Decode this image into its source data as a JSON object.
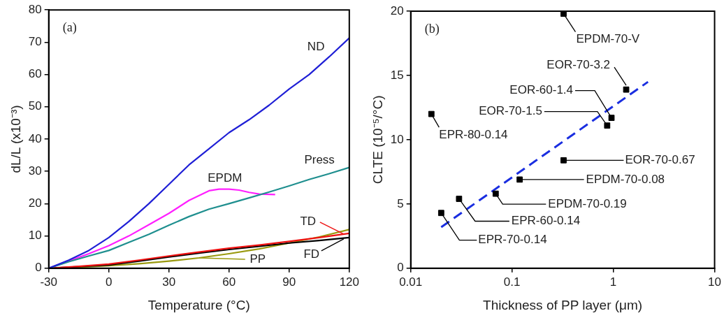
{
  "chart_data": [
    {
      "type": "line",
      "xlabel": "Temperature (°C)",
      "ylabel": "dL/L (x10⁻³)",
      "xlim": [
        -30,
        120
      ],
      "xticks": [
        -30,
        0,
        30,
        60,
        90,
        120
      ],
      "ylim": [
        0,
        80
      ],
      "yticks": [
        0,
        10,
        20,
        30,
        40,
        50,
        60,
        70,
        80
      ],
      "grid": false,
      "annotations": [
        "(a)"
      ],
      "series": [
        {
          "name": "ND",
          "color": "#1f1fd6",
          "x": [
            -30,
            -20,
            -10,
            0,
            10,
            20,
            30,
            40,
            50,
            60,
            70,
            80,
            90,
            100,
            110,
            120
          ],
          "values": [
            0,
            2.5,
            5.5,
            9.5,
            14.5,
            20,
            26,
            32,
            37,
            42,
            46,
            50.5,
            55.5,
            60,
            65.5,
            71.3
          ]
        },
        {
          "name": "Press",
          "color": "#1f8f8f",
          "x": [
            -30,
            -20,
            -10,
            0,
            10,
            20,
            30,
            40,
            50,
            60,
            70,
            80,
            90,
            100,
            110,
            120
          ],
          "values": [
            0,
            2,
            3.8,
            5.5,
            8,
            10.5,
            13.3,
            16,
            18.3,
            20,
            21.8,
            23.6,
            25.5,
            27.5,
            29.3,
            31.2
          ]
        },
        {
          "name": "EPDM",
          "color": "#ff1fff",
          "x": [
            -30,
            -20,
            -10,
            0,
            10,
            20,
            30,
            40,
            50,
            55,
            60,
            65,
            70,
            75,
            83
          ],
          "values": [
            0,
            2.2,
            4.5,
            7,
            10,
            13.5,
            17,
            21,
            24,
            24.5,
            24.5,
            24.2,
            23.5,
            23,
            22.8
          ]
        },
        {
          "name": "TD",
          "color": "#ee1111",
          "x": [
            -30,
            -15,
            0,
            15,
            30,
            45,
            60,
            75,
            90,
            105,
            120
          ],
          "values": [
            0,
            0.6,
            1.3,
            2.5,
            3.8,
            5,
            6.2,
            7.2,
            8.3,
            9.5,
            10.8
          ]
        },
        {
          "name": "FD",
          "color": "#000000",
          "x": [
            -30,
            -15,
            0,
            15,
            30,
            45,
            60,
            75,
            90,
            105,
            120
          ],
          "values": [
            0,
            0.5,
            1,
            2.2,
            3.5,
            4.7,
            5.8,
            6.8,
            7.8,
            8.6,
            9.5
          ]
        },
        {
          "name": "PP",
          "color": "#9a9a10",
          "x": [
            -30,
            -15,
            0,
            15,
            30,
            45,
            60,
            75,
            90,
            105,
            120
          ],
          "values": [
            0,
            0.3,
            0.8,
            1.4,
            2.2,
            3.2,
            4.5,
            6,
            7.8,
            9.7,
            12
          ]
        }
      ]
    },
    {
      "type": "scatter",
      "xlabel": "Thickness of PP layer (μm)",
      "ylabel": "CLTE (10⁻⁵/°C)",
      "log": "x",
      "marker": "square",
      "xlim": [
        0.01,
        10
      ],
      "xticks": [
        0.01,
        0.1,
        1,
        10
      ],
      "ylim": [
        0,
        20
      ],
      "yticks": [
        0,
        5,
        10,
        15,
        20
      ],
      "grid": false,
      "annotations": [
        "(b)",
        {
          "text": "EPDM-70-V",
          "x": 0.323,
          "y": 19.8
        },
        {
          "text": "EOR-70-3.2",
          "x": 1.34,
          "y": 13.9
        },
        {
          "text": "EOR-60-1.4",
          "x": 0.96,
          "y": 11.7
        },
        {
          "text": "EOR-70-1.5",
          "x": 0.87,
          "y": 11.1
        },
        {
          "text": "EPR-80-0.14",
          "x": 0.016,
          "y": 12
        },
        {
          "text": "EOR-70-0.67",
          "x": 0.323,
          "y": 8.4
        },
        {
          "text": "EPDM-70-0.08",
          "x": 0.119,
          "y": 6.9
        },
        {
          "text": "EPDM-70-0.19",
          "x": 0.069,
          "y": 5.8
        },
        {
          "text": "EPR-60-0.14",
          "x": 0.03,
          "y": 5.4
        },
        {
          "text": "EPR-70-0.14",
          "x": 0.02,
          "y": 4.3
        }
      ],
      "series": [
        {
          "color": "#000000",
          "x": [
            0.323,
            1.34,
            0.96,
            0.87,
            0.016,
            0.323,
            0.119,
            0.069,
            0.03,
            0.02
          ],
          "values": [
            19.8,
            13.9,
            11.7,
            11.1,
            12,
            8.4,
            6.9,
            5.8,
            5.4,
            4.3
          ]
        },
        {
          "type": "line",
          "line_style": "dashed",
          "marker": "none",
          "color": "#1a2ee0",
          "x": [
            0.02,
            2.2
          ],
          "values": [
            3.2,
            14.5
          ]
        }
      ]
    }
  ]
}
